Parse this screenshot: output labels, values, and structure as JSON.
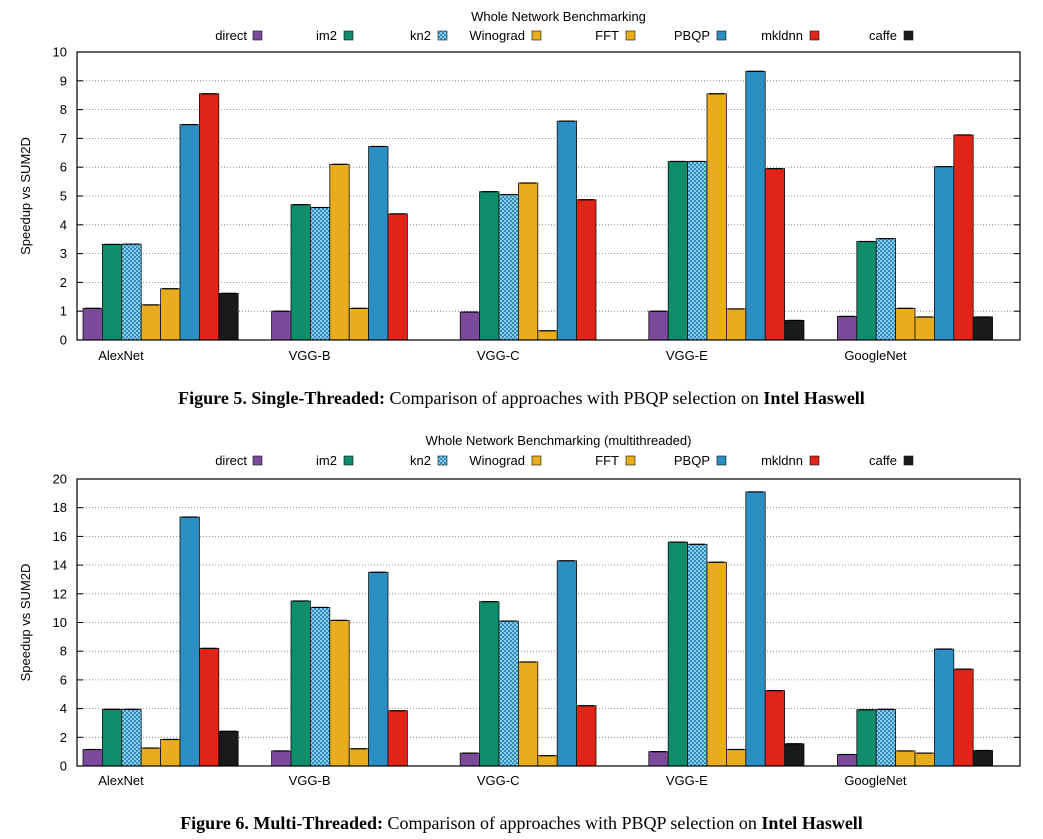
{
  "chart_data": [
    {
      "type": "bar",
      "title": "Whole Network Benchmarking",
      "ylabel": "Speedup vs SUM2D",
      "xlabel": "",
      "ylim": [
        0,
        10
      ],
      "yticks": [
        0,
        1,
        2,
        3,
        4,
        5,
        6,
        7,
        8,
        9,
        10
      ],
      "grid": true,
      "legend_position": "top",
      "categories": [
        "AlexNet",
        "VGG-B",
        "VGG-C",
        "VGG-E",
        "GoogleNet"
      ],
      "series": [
        {
          "name": "direct",
          "color": "#7b4a9b",
          "values": [
            1.1,
            1.0,
            0.97,
            1.0,
            0.82
          ]
        },
        {
          "name": "im2",
          "color": "#0f8c6a",
          "values": [
            3.32,
            4.7,
            5.15,
            6.2,
            3.42
          ]
        },
        {
          "name": "kn2",
          "color": "#2c8fc4",
          "hatched": true,
          "values": [
            3.33,
            4.6,
            5.05,
            6.2,
            3.52
          ]
        },
        {
          "name": "Winograd",
          "color": "#e8ac1c",
          "values": [
            1.22,
            6.1,
            5.45,
            8.55,
            1.1
          ]
        },
        {
          "name": "FFT",
          "color": "#e8ac1c",
          "values": [
            1.78,
            1.1,
            0.32,
            1.08,
            0.8
          ]
        },
        {
          "name": "PBQP",
          "color": "#2c8fc4",
          "values": [
            7.48,
            6.72,
            7.6,
            9.33,
            6.02
          ]
        },
        {
          "name": "mkldnn",
          "color": "#e02518",
          "values": [
            8.55,
            4.38,
            4.87,
            5.95,
            7.12
          ]
        },
        {
          "name": "caffe",
          "color": "#1a1a1a",
          "values": [
            1.62,
            0,
            0,
            0.68,
            0.8
          ]
        }
      ]
    },
    {
      "type": "bar",
      "title": "Whole Network Benchmarking (multithreaded)",
      "ylabel": "Speedup vs SUM2D",
      "xlabel": "",
      "ylim": [
        0,
        20
      ],
      "yticks": [
        0,
        2,
        4,
        6,
        8,
        10,
        12,
        14,
        16,
        18,
        20
      ],
      "grid": true,
      "legend_position": "top",
      "categories": [
        "AlexNet",
        "VGG-B",
        "VGG-C",
        "VGG-E",
        "GoogleNet"
      ],
      "series": [
        {
          "name": "direct",
          "color": "#7b4a9b",
          "values": [
            1.15,
            1.05,
            0.9,
            1.0,
            0.8
          ]
        },
        {
          "name": "im2",
          "color": "#0f8c6a",
          "values": [
            3.95,
            11.5,
            11.45,
            15.6,
            3.92
          ]
        },
        {
          "name": "kn2",
          "color": "#2c8fc4",
          "hatched": true,
          "values": [
            3.95,
            11.05,
            10.1,
            15.45,
            3.95
          ]
        },
        {
          "name": "Winograd",
          "color": "#e8ac1c",
          "values": [
            1.25,
            10.15,
            7.25,
            14.2,
            1.05
          ]
        },
        {
          "name": "FFT",
          "color": "#e8ac1c",
          "values": [
            1.85,
            1.2,
            0.72,
            1.15,
            0.9
          ]
        },
        {
          "name": "PBQP",
          "color": "#2c8fc4",
          "values": [
            17.35,
            13.5,
            14.3,
            19.1,
            8.15
          ]
        },
        {
          "name": "mkldnn",
          "color": "#e02518",
          "values": [
            8.2,
            3.85,
            4.2,
            5.25,
            6.75
          ]
        },
        {
          "name": "caffe",
          "color": "#1a1a1a",
          "values": [
            2.42,
            0,
            0,
            1.55,
            1.08
          ]
        }
      ]
    }
  ],
  "captions": [
    {
      "label": "Figure 5.",
      "bold_title": "Single-Threaded:",
      "text": "Comparison of approaches with PBQP selection on",
      "bold_target": "Intel Haswell"
    },
    {
      "label": "Figure 6.",
      "bold_title": "Multi-Threaded:",
      "text": "Comparison of approaches with PBQP selection on",
      "bold_target": "Intel Haswell"
    }
  ]
}
